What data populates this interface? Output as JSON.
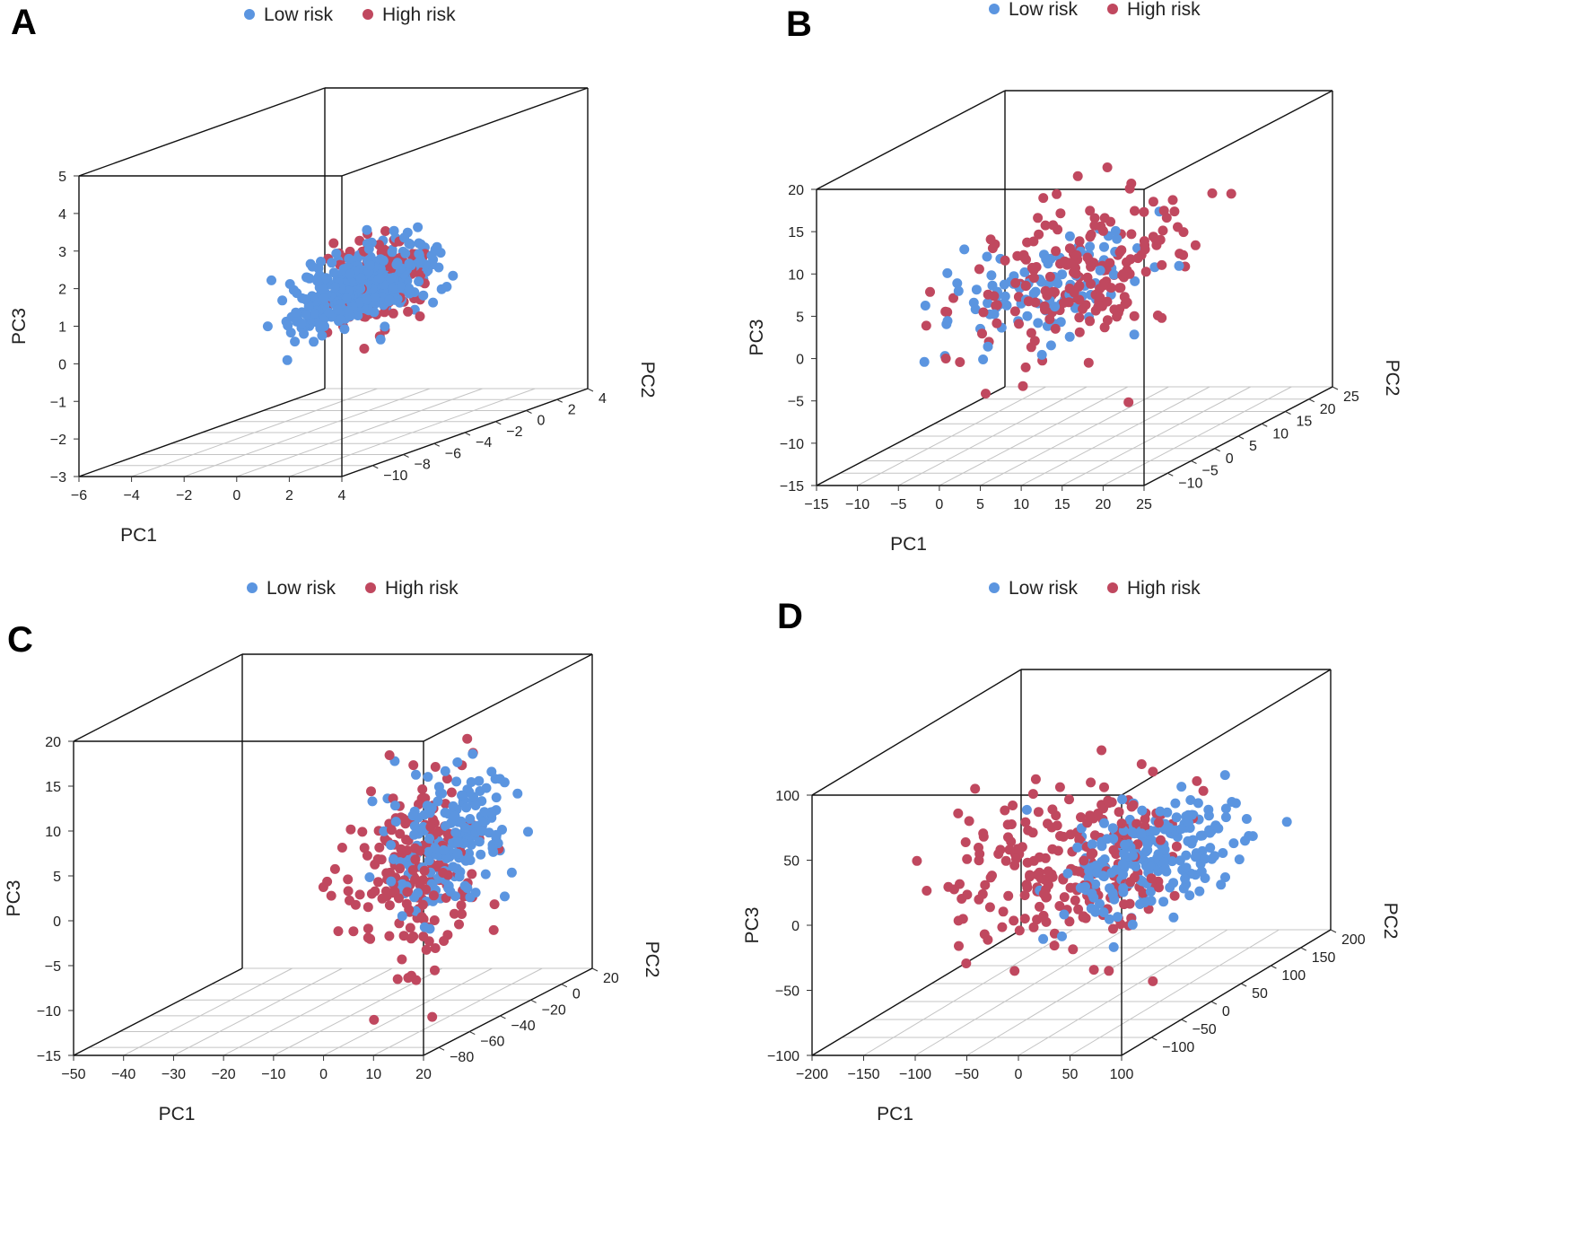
{
  "colors": {
    "low": "#5b95e0",
    "high": "#c0485f",
    "box": "#111111",
    "grid": "#c4c4c4"
  },
  "legend": {
    "low": "Low risk",
    "high": "High risk"
  },
  "chart_data": [
    {
      "panel": "A",
      "type": "scatter",
      "xlabel": "PC1",
      "ylabel": "PC2",
      "zlabel": "PC3",
      "xlim": [
        -6,
        4
      ],
      "ylim": [
        -12,
        4
      ],
      "zlim": [
        -3,
        5
      ],
      "xticks": [
        -6,
        -4,
        -2,
        0,
        2,
        4
      ],
      "yticks": [
        -10,
        -8,
        -6,
        -4,
        -2,
        0,
        2,
        4
      ],
      "zticks": [
        -3,
        -2,
        -1,
        0,
        1,
        2,
        3,
        4,
        5
      ],
      "series": [
        {
          "name": "Low risk",
          "color": "#5b95e0",
          "cluster": {
            "center": [
              2.2,
              -7.5,
              1.4
            ],
            "spread": [
              0.45,
              2.2,
              0.45
            ],
            "count": 420
          }
        },
        {
          "name": "High risk",
          "color": "#c0485f",
          "cluster": {
            "center": [
              1.6,
              -5.5,
              1.2
            ],
            "spread": [
              0.5,
              1.3,
              0.6
            ],
            "count": 170
          }
        }
      ]
    },
    {
      "panel": "B",
      "type": "scatter",
      "xlabel": "PC1",
      "ylabel": "PC2",
      "zlabel": "PC3",
      "xlim": [
        -15,
        25
      ],
      "ylim": [
        -15,
        25
      ],
      "zlim": [
        -15,
        20
      ],
      "xticks": [
        -15,
        -10,
        -5,
        0,
        5,
        10,
        15,
        20,
        25
      ],
      "yticks": [
        -10,
        -5,
        0,
        5,
        10,
        15,
        20,
        25
      ],
      "zticks": [
        -15,
        -10,
        -5,
        0,
        5,
        10,
        15,
        20
      ],
      "series": [
        {
          "name": "Low risk",
          "color": "#5b95e0",
          "cluster": {
            "center": [
              0,
              8,
              1.5
            ],
            "spread": [
              4,
              8,
              2.5
            ],
            "count": 110
          }
        },
        {
          "name": "High risk",
          "color": "#c0485f",
          "cluster": {
            "center": [
              6,
              4,
              4
            ],
            "spread": [
              5,
              8,
              4
            ],
            "count": 190
          }
        }
      ]
    },
    {
      "panel": "C",
      "type": "scatter",
      "xlabel": "PC1",
      "ylabel": "PC2",
      "zlabel": "PC3",
      "xlim": [
        -50,
        20
      ],
      "ylim": [
        -90,
        20
      ],
      "zlim": [
        -15,
        20
      ],
      "xticks": [
        -50,
        -40,
        -30,
        -20,
        -10,
        0,
        10,
        20
      ],
      "yticks": [
        -80,
        -60,
        -40,
        -20,
        0,
        20
      ],
      "zticks": [
        -15,
        -10,
        -5,
        0,
        5,
        10,
        15,
        20
      ],
      "series": [
        {
          "name": "Low risk",
          "color": "#5b95e0",
          "cluster": {
            "center": [
              13,
              -50,
              5
            ],
            "spread": [
              3.5,
              14,
              4
            ],
            "count": 200
          }
        },
        {
          "name": "High risk",
          "color": "#c0485f",
          "cluster": {
            "center": [
              8,
              -55,
              3
            ],
            "spread": [
              5,
              18,
              5
            ],
            "count": 200
          }
        }
      ]
    },
    {
      "panel": "D",
      "type": "scatter",
      "xlabel": "PC1",
      "ylabel": "PC2",
      "zlabel": "PC3",
      "xlim": [
        -200,
        100
      ],
      "ylim": [
        -150,
        200
      ],
      "zlim": [
        -100,
        100
      ],
      "xticks": [
        -200,
        -150,
        -100,
        -50,
        0,
        50,
        100
      ],
      "yticks": [
        -100,
        -50,
        0,
        50,
        100,
        150,
        200
      ],
      "zticks": [
        -100,
        -50,
        0,
        50,
        100
      ],
      "series": [
        {
          "name": "Low risk",
          "color": "#5b95e0",
          "cluster": {
            "center": [
              30,
              20,
              5
            ],
            "spread": [
              30,
              50,
              18
            ],
            "count": 220
          }
        },
        {
          "name": "High risk",
          "color": "#c0485f",
          "cluster": {
            "center": [
              -40,
              0,
              5
            ],
            "spread": [
              50,
              55,
              30
            ],
            "count": 220
          }
        }
      ]
    }
  ]
}
